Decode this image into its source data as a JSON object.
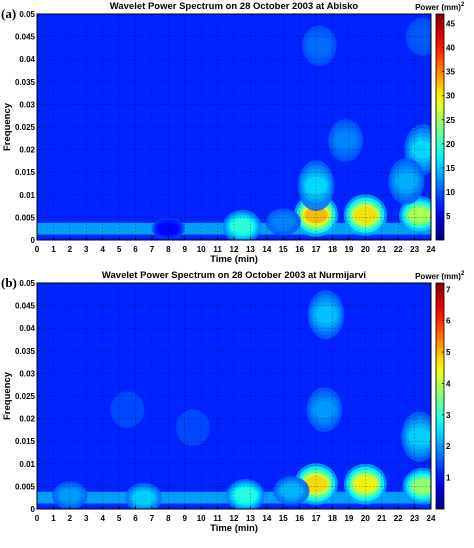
{
  "chart_data": [
    {
      "type": "heatmap",
      "panel_label": "(a)",
      "title": "Wavelet Power Spectrum on 28 October 2003 at Abisko",
      "xlabel": "Time (min)",
      "ylabel": "Frequency",
      "colorbar_label": "Power (mm)",
      "colorbar_exponent": "2",
      "xlim": [
        0,
        24
      ],
      "ylim": [
        0,
        0.05
      ],
      "x_ticks": [
        "0",
        "1",
        "2",
        "3",
        "4",
        "5",
        "6",
        "7",
        "8",
        "9",
        "10",
        "11",
        "12",
        "13",
        "14",
        "15",
        "16",
        "17",
        "18",
        "19",
        "20",
        "21",
        "22",
        "23",
        "24"
      ],
      "y_ticks": [
        "0",
        "0.005",
        "0.01",
        "0.015",
        "0.02",
        "0.025",
        "0.03",
        "0.035",
        "0.04",
        "0.045",
        "0.05"
      ],
      "colorbar_ticks": [
        "5",
        "10",
        "15",
        "20",
        "25",
        "30",
        "35",
        "40",
        "45"
      ],
      "colorbar_max": 47,
      "grid": true,
      "blobs": [
        {
          "x": 17,
          "y": 0.0055,
          "power": 33
        },
        {
          "x": 20,
          "y": 0.0055,
          "power": 31
        },
        {
          "x": 23.3,
          "y": 0.0055,
          "power": 26
        },
        {
          "x": 12.5,
          "y": 0.003,
          "power": 20
        },
        {
          "x": 17,
          "y": 0.012,
          "power": 16
        },
        {
          "x": 23.5,
          "y": 0.02,
          "power": 16
        },
        {
          "x": 15,
          "y": 0.004,
          "power": 12
        },
        {
          "x": 18.8,
          "y": 0.022,
          "power": 12
        },
        {
          "x": 22.5,
          "y": 0.013,
          "power": 14
        },
        {
          "x": 17.2,
          "y": 0.043,
          "power": 11
        },
        {
          "x": 23.5,
          "y": 0.045,
          "power": 10
        },
        {
          "x": 8,
          "y": 0.0025,
          "power": 6
        }
      ]
    },
    {
      "type": "heatmap",
      "panel_label": "(b)",
      "title": "Wavelet Power Spectrum on 28 October 2003 at Nurmijarvi",
      "xlabel": "Time (min)",
      "ylabel": "Frequency",
      "colorbar_label": "Power (mm)",
      "colorbar_exponent": "2",
      "xlim": [
        0,
        24
      ],
      "ylim": [
        0,
        0.05
      ],
      "x_ticks": [
        "0",
        "1",
        "2",
        "3",
        "4",
        "5",
        "6",
        "7",
        "8",
        "9",
        "10",
        "11",
        "12",
        "13",
        "14",
        "15",
        "16",
        "17",
        "18",
        "19",
        "20",
        "21",
        "22",
        "23",
        "24"
      ],
      "y_ticks": [
        "0",
        "0.005",
        "0.01",
        "0.015",
        "0.02",
        "0.025",
        "0.03",
        "0.035",
        "0.04",
        "0.045",
        "0.05"
      ],
      "colorbar_ticks": [
        "1",
        "2",
        "3",
        "4",
        "5",
        "6",
        "7"
      ],
      "colorbar_max": 7.2,
      "grid": true,
      "blobs": [
        {
          "x": 17,
          "y": 0.0055,
          "power": 4.8
        },
        {
          "x": 20,
          "y": 0.0055,
          "power": 4.6
        },
        {
          "x": 23.5,
          "y": 0.005,
          "power": 3.8
        },
        {
          "x": 12.7,
          "y": 0.003,
          "power": 3.0
        },
        {
          "x": 6.5,
          "y": 0.0025,
          "power": 2.4
        },
        {
          "x": 2,
          "y": 0.003,
          "power": 2.0
        },
        {
          "x": 17.6,
          "y": 0.043,
          "power": 2.3
        },
        {
          "x": 17.5,
          "y": 0.022,
          "power": 2.0
        },
        {
          "x": 23.3,
          "y": 0.016,
          "power": 2.4
        },
        {
          "x": 15.5,
          "y": 0.004,
          "power": 2.2
        },
        {
          "x": 5.5,
          "y": 0.022,
          "power": 1.4
        },
        {
          "x": 9.5,
          "y": 0.018,
          "power": 1.4
        }
      ]
    }
  ]
}
